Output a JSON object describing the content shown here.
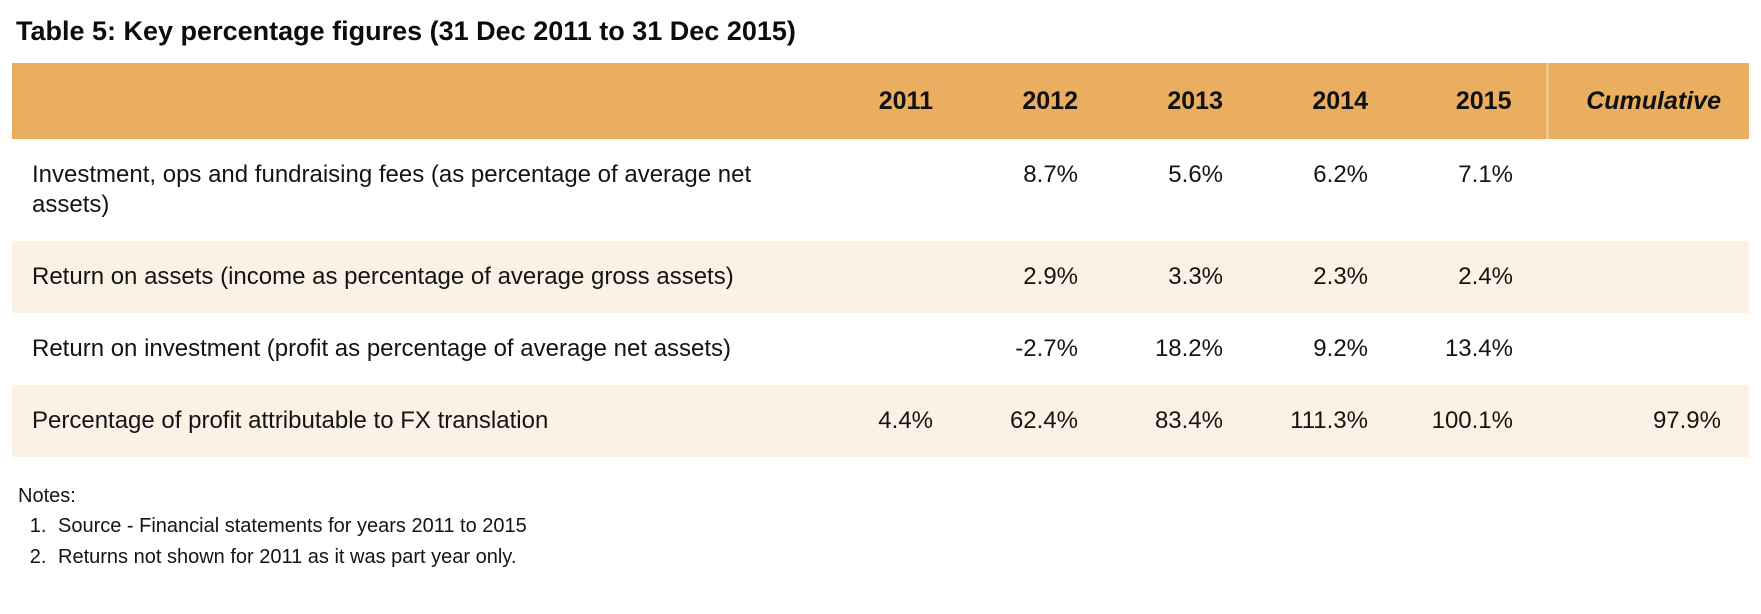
{
  "title": "Table 5: Key percentage figures (31 Dec 2011 to 31 Dec 2015)",
  "table": {
    "columns": [
      "",
      "2011",
      "2012",
      "2013",
      "2014",
      "2015",
      "Cumulative"
    ],
    "rows": [
      {
        "label": "Investment, ops and fundraising fees (as percentage of average net assets)",
        "values": [
          "",
          "8.7%",
          "5.6%",
          "6.2%",
          "7.1%",
          ""
        ]
      },
      {
        "label": "Return on assets (income as percentage of average gross assets)",
        "values": [
          "",
          "2.9%",
          "3.3%",
          "2.3%",
          "2.4%",
          ""
        ]
      },
      {
        "label": "Return on investment (profit as percentage of average net assets)",
        "values": [
          "",
          "-2.7%",
          "18.2%",
          "9.2%",
          "13.4%",
          ""
        ]
      },
      {
        "label": "Percentage of profit attributable to FX translation",
        "values": [
          "4.4%",
          "62.4%",
          "83.4%",
          "111.3%",
          "100.1%",
          "97.9%"
        ]
      }
    ]
  },
  "notes": {
    "heading": "Notes:",
    "items": [
      "Source - Financial statements for years 2011 to 2015",
      "Returns not shown for 2011 as it was part year only."
    ]
  },
  "colors": {
    "header_bg": "#E9AE60",
    "row_alt_bg": "#FBF1E5",
    "header_divider": "#F3C78C",
    "text": "#141414"
  }
}
